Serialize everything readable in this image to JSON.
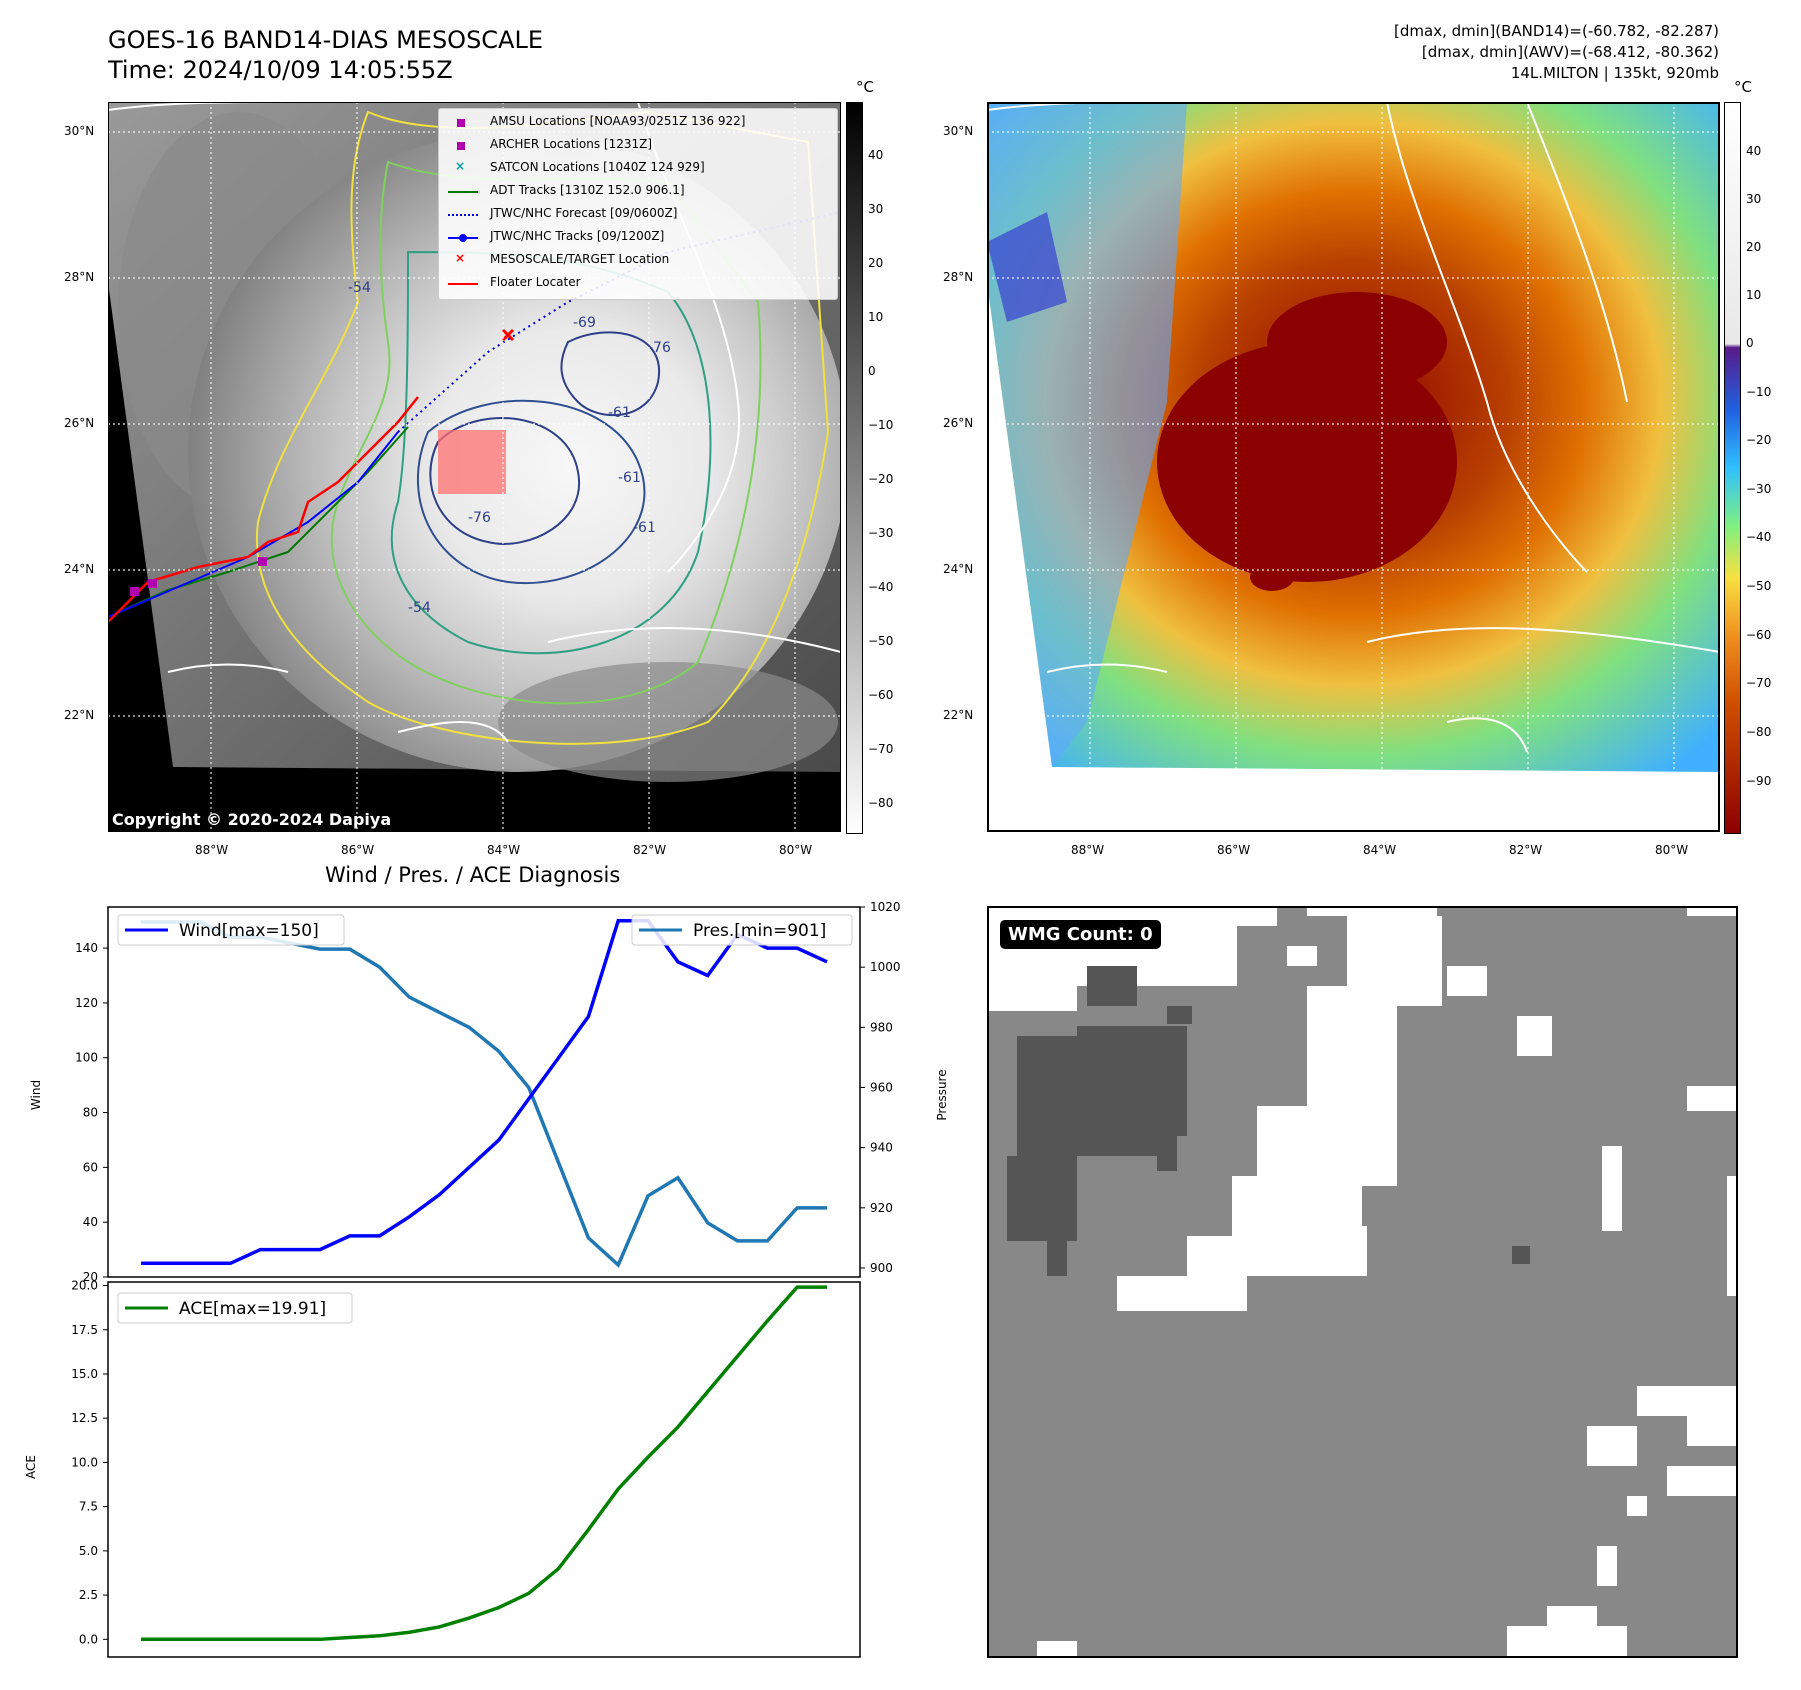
{
  "sat_panel": {
    "title_line1": "GOES-16 BAND14-DIAS MESOSCALE",
    "title_line2": "Time: 2024/10/09 14:05:55Z",
    "unit": "°C",
    "copyright": "Copyright © 2020-2024 Dapiya",
    "lat_labels": [
      "30°N",
      "28°N",
      "26°N",
      "24°N",
      "22°N"
    ],
    "lon_labels": [
      "88°W",
      "86°W",
      "84°W",
      "82°W",
      "80°W"
    ],
    "colorbar_ticks": [
      "40",
      "30",
      "20",
      "10",
      "0",
      "−10",
      "−20",
      "−30",
      "−40",
      "−50",
      "−60",
      "−70",
      "−80"
    ],
    "legend": [
      {
        "label": "AMSU Locations [NOAA93/0251Z 136 922]",
        "color": "#b000b0",
        "marker": "square"
      },
      {
        "label": "ARCHER Locations [1231Z]",
        "color": "#b000b0",
        "marker": "square"
      },
      {
        "label": "SATCON Locations [1040Z 124 929]",
        "color": "#00a0a0",
        "marker": "x"
      },
      {
        "label": "ADT Tracks [1310Z 152.0 906.1]",
        "color": "#007700",
        "marker": "line"
      },
      {
        "label": "JTWC/NHC Forecast [09/0600Z]",
        "color": "#0000dd",
        "marker": "dotted"
      },
      {
        "label": "JTWC/NHC Tracks [09/1200Z]",
        "color": "#0000ff",
        "marker": "dotline"
      },
      {
        "label": "MESOSCALE/TARGET Location",
        "color": "#ff0000",
        "marker": "x"
      },
      {
        "label": "Floater Locater",
        "color": "#ff0000",
        "marker": "line"
      }
    ],
    "contour_labels": [
      "-76",
      "-76",
      "-61",
      "-61",
      "-61",
      "-54",
      "-54",
      "-69"
    ]
  },
  "awv_panel": {
    "info_line1": "[dmax, dmin](BAND14)=(-60.782, -82.287)",
    "info_line2": "[dmax, dmin](AWV)=(-68.412, -80.362)",
    "info_line3": "14L.MILTON | 135kt, 920mb",
    "unit": "°C",
    "lat_labels": [
      "30°N",
      "28°N",
      "26°N",
      "24°N",
      "22°N"
    ],
    "lon_labels": [
      "88°W",
      "86°W",
      "84°W",
      "82°W",
      "80°W"
    ],
    "colorbar_ticks": [
      "40",
      "30",
      "20",
      "10",
      "0",
      "−10",
      "−20",
      "−30",
      "−40",
      "−50",
      "−60",
      "−70",
      "−80",
      "−90"
    ]
  },
  "diag_title": "Wind / Pres. / ACE Diagnosis",
  "wmg_label": "WMG Count: 0",
  "colors": {
    "wind": "#0000ff",
    "pressure": "#1f77b4",
    "ace": "#008000",
    "gray_bg": "#888888",
    "dark_gray": "#555555"
  },
  "chart_data": [
    {
      "type": "line",
      "title": "Wind / Pres. / ACE Diagnosis",
      "xlabel": "",
      "ylabel": "Wind",
      "y2label": "Pressure",
      "ylim": [
        20,
        155
      ],
      "y2lim": [
        897,
        1020
      ],
      "yticks": [
        "140",
        "120",
        "100",
        "80",
        "60",
        "40",
        "20"
      ],
      "y2ticks": [
        "1020",
        "1000",
        "980",
        "960",
        "940",
        "920",
        "900"
      ],
      "x": [
        0,
        1,
        2,
        3,
        4,
        5,
        6,
        7,
        8,
        9,
        10,
        11,
        12,
        13,
        14,
        15,
        16,
        17,
        18,
        19,
        20,
        21,
        22,
        23
      ],
      "series": [
        {
          "name": "Wind[max=150]",
          "axis": "left",
          "values": [
            25,
            25,
            25,
            25,
            30,
            30,
            30,
            35,
            35,
            42,
            50,
            60,
            70,
            85,
            100,
            115,
            150,
            150,
            135,
            130,
            145,
            140,
            140,
            135
          ]
        },
        {
          "name": "Pres.[min=901]",
          "axis": "right",
          "values": [
            1015,
            1015,
            1015,
            1010,
            1010,
            1008,
            1006,
            1006,
            1000,
            990,
            985,
            980,
            972,
            960,
            935,
            910,
            901,
            924,
            930,
            915,
            909,
            909,
            920,
            920
          ]
        }
      ]
    },
    {
      "type": "line",
      "xlabel": "",
      "ylabel": "ACE",
      "ylim": [
        -1,
        20.2
      ],
      "yticks": [
        "20.0",
        "17.5",
        "15.0",
        "12.5",
        "10.0",
        "7.5",
        "5.0",
        "2.5",
        "0.0"
      ],
      "x": [
        0,
        1,
        2,
        3,
        4,
        5,
        6,
        7,
        8,
        9,
        10,
        11,
        12,
        13,
        14,
        15,
        16,
        17,
        18,
        19,
        20,
        21,
        22,
        23
      ],
      "series": [
        {
          "name": "ACE[max=19.91]",
          "values": [
            0.0,
            0.0,
            0.0,
            0.0,
            0.0,
            0.0,
            0.0,
            0.1,
            0.2,
            0.4,
            0.7,
            1.2,
            1.8,
            2.6,
            4.0,
            6.2,
            8.5,
            10.3,
            12.0,
            14.0,
            16.0,
            18.0,
            19.91,
            19.91
          ]
        }
      ]
    }
  ]
}
